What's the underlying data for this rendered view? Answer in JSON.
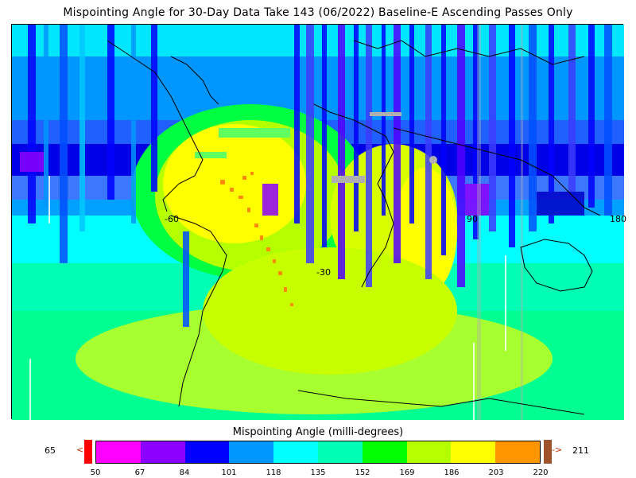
{
  "title": "Mispointing Angle for 30-Day Data Take 143 (06/2022) Baseline-E Ascending Passes Only",
  "map": {
    "lat_labels": [
      "-30"
    ],
    "lon_labels": [
      "-60",
      "90",
      "180"
    ]
  },
  "legend": {
    "title": "Mispointing Angle (milli-degrees)",
    "min_value": "65",
    "max_value": "211",
    "under_arrow": "<",
    "over_arrow": "->",
    "under_color": "#ff0000",
    "over_color": "#a0522d",
    "bins": [
      {
        "color": "#ff00ff"
      },
      {
        "color": "#8c00ff"
      },
      {
        "color": "#0000ff"
      },
      {
        "color": "#0096ff"
      },
      {
        "color": "#00ffff"
      },
      {
        "color": "#00ffb4"
      },
      {
        "color": "#00ff00"
      },
      {
        "color": "#b4ff00"
      },
      {
        "color": "#ffff00"
      },
      {
        "color": "#ff9600"
      }
    ],
    "ticks": [
      "50",
      "67",
      "84",
      "101",
      "118",
      "135",
      "152",
      "169",
      "186",
      "203",
      "220"
    ]
  }
}
